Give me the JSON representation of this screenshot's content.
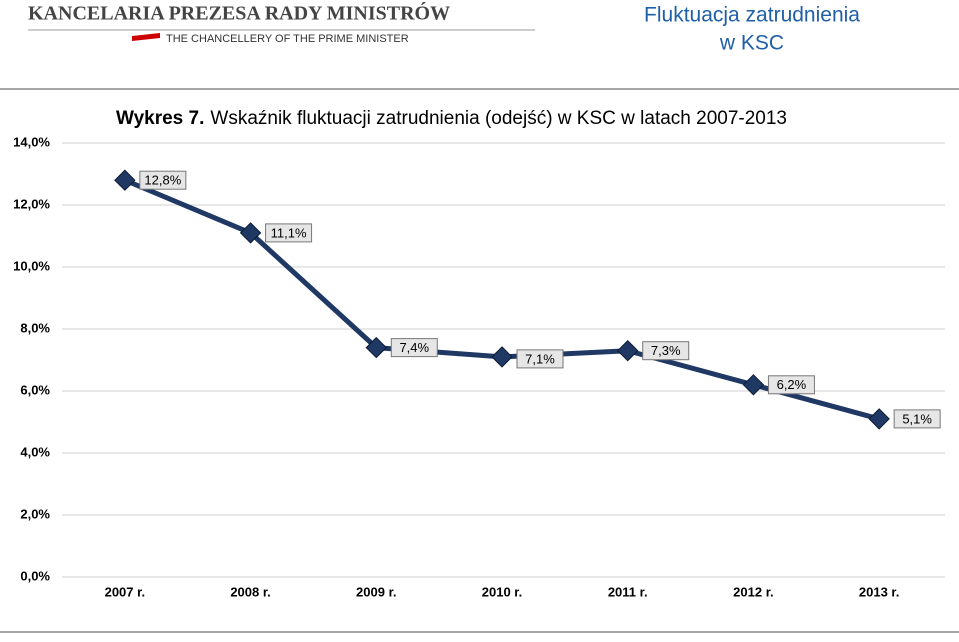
{
  "header": {
    "logo_title": "KANCELARIA PREZESA RADY MINISTRÓW",
    "logo_subtitle": "THE CHANCELLERY OF THE PRIME MINISTER",
    "slide_title": [
      "Fluktuacja zatrudnienia",
      "w KSC"
    ]
  },
  "chart_data": {
    "type": "line",
    "label": "Wykres 7.",
    "title": "Wskaźnik fluktuacji zatrudnienia (odejść) w KSC w latach 2007-2013",
    "categories": [
      "2007 r.",
      "2008 r.",
      "2009 r.",
      "2010 r.",
      "2011 r.",
      "2012 r.",
      "2013 r."
    ],
    "values": [
      12.8,
      11.1,
      7.4,
      7.1,
      7.3,
      6.2,
      5.1
    ],
    "value_labels": [
      "12,8%",
      "11,1%",
      "7,4%",
      "7,1%",
      "7,3%",
      "6,2%",
      "5,1%"
    ],
    "color": "#1f3864",
    "ylim": [
      0,
      14
    ],
    "yticks": [
      {
        "value": 0,
        "label": "0,0%"
      },
      {
        "value": 2,
        "label": "2,0%"
      },
      {
        "value": 4,
        "label": "4,0%"
      },
      {
        "value": 6,
        "label": "6,0%"
      },
      {
        "value": 8,
        "label": "8,0%"
      },
      {
        "value": 10,
        "label": "10,0%"
      },
      {
        "value": 12,
        "label": "12,0%"
      },
      {
        "value": 14,
        "label": "14,0%"
      }
    ],
    "grid": true
  }
}
